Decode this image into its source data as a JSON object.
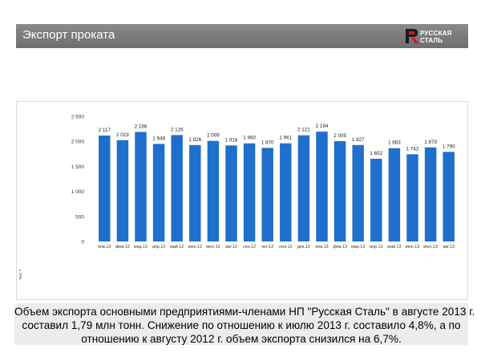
{
  "header": {
    "title": "Экспорт проката",
    "logo_line1": "РУССКАЯ",
    "logo_line2": "СТАЛЬ"
  },
  "caption": {
    "line1": "Объем экспорта основными предприятиями-членами НП \"Русская Сталь\" в августе 2013 г.",
    "line2": "составил 1,79 млн тонн. Снижение по отношению к июлю  2013 г. составило 4,8%, а по",
    "line3": "отношению к августу 2012 г. объем экспорта снизился на 6,7%."
  },
  "colors": {
    "bar": "#1f6fcc",
    "header": "#7a7a7a",
    "logo_red": "#d4161c"
  },
  "chart_data": {
    "type": "bar",
    "ylabel": "тыс.т",
    "ylim": [
      0,
      2500
    ],
    "yticks": [
      0,
      500,
      1000,
      1500,
      2000,
      2500
    ],
    "ytick_labels": [
      "0",
      "500",
      "1 000",
      "1 500",
      "2 000",
      "2 500"
    ],
    "grid": false,
    "categories": [
      "янв.12",
      "фев.12",
      "мар.12",
      "апр.12",
      "май.12",
      "июн.12",
      "июл.12",
      "авг.12",
      "сен.12",
      "окт.12",
      "ноя.12",
      "дек.12",
      "янв.13",
      "фев.13",
      "мар.13",
      "апр.13",
      "май.13",
      "июн.13",
      "июл.13",
      "авг.13"
    ],
    "values": [
      2117,
      2023,
      2188,
      1949,
      2126,
      1926,
      2009,
      1918,
      1960,
      1870,
      1961,
      2121,
      2194,
      2005,
      1927,
      1652,
      1863,
      1742,
      1879,
      1790
    ],
    "value_labels": [
      "2 117",
      "2 023",
      "2 188",
      "1 949",
      "2 126",
      "1 926",
      "2 009",
      "1 918",
      "1 960",
      "1 870",
      "1 961",
      "2 121",
      "2 194",
      "2 005",
      "1 927",
      "1 652",
      "1 863",
      "1 742",
      "1 879",
      "1 790"
    ]
  }
}
